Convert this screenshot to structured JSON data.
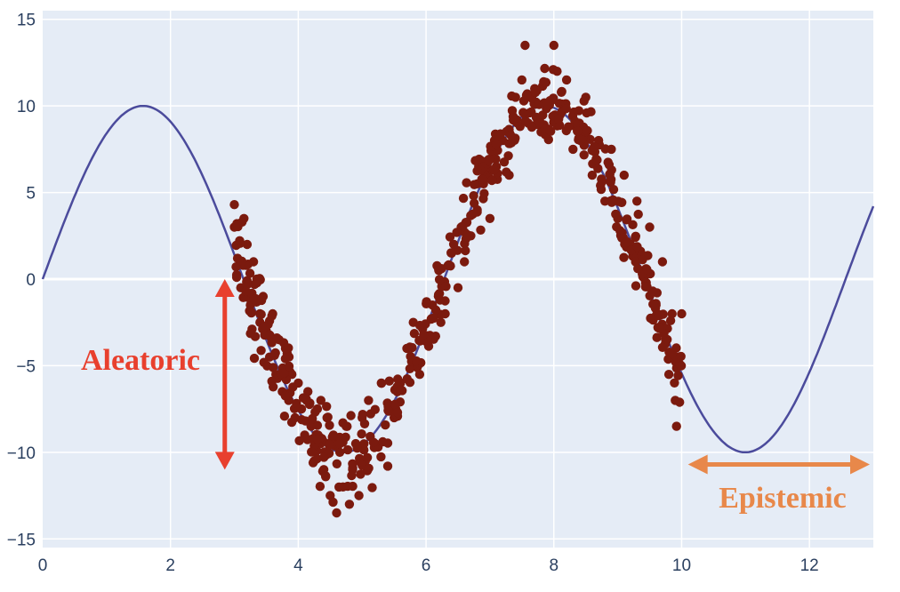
{
  "chart_data": {
    "type": "scatter",
    "title": "",
    "xlabel": "",
    "ylabel": "",
    "xlim": [
      0,
      13
    ],
    "ylim": [
      -15.5,
      15.5
    ],
    "x_ticks": [
      "0",
      "2",
      "4",
      "6",
      "8",
      "10",
      "12"
    ],
    "y_ticks": [
      "15",
      "10",
      "5",
      "0",
      "−5",
      "−10",
      "−15"
    ],
    "grid": true,
    "legend": "none",
    "colors": {
      "plot_background": "#e5ecf6",
      "grid": "#ffffff",
      "curve": "#4b4b9c",
      "points": "#7b1a0e",
      "aleatoric": "#e8402e",
      "epistemic": "#e8884a"
    },
    "series": [
      {
        "kind": "line",
        "function": "y = 10*sin(x)",
        "x_range": [
          0,
          13
        ],
        "samples": [
          [
            0,
            0
          ],
          [
            1.5708,
            10
          ],
          [
            3.1416,
            0
          ],
          [
            4.7124,
            -10
          ],
          [
            6.2832,
            0
          ],
          [
            7.854,
            10
          ],
          [
            9.4248,
            0
          ],
          [
            10.9956,
            -10
          ],
          [
            12.5664,
            0
          ],
          [
            13,
            4.2
          ]
        ]
      },
      {
        "kind": "scatter",
        "points": [
          [
            3.0,
            4.3
          ],
          [
            3.0,
            3.0
          ],
          [
            3.05,
            1.2
          ],
          [
            3.1,
            -0.5
          ],
          [
            3.15,
            3.5
          ],
          [
            3.2,
            2.0
          ],
          [
            3.25,
            -1.5
          ],
          [
            3.3,
            1.0
          ],
          [
            3.35,
            0.0
          ],
          [
            3.4,
            -2.5
          ],
          [
            3.45,
            -1.0
          ],
          [
            3.5,
            -3.0
          ],
          [
            3.55,
            -4.5
          ],
          [
            3.6,
            -2.0
          ],
          [
            3.65,
            -5.5
          ],
          [
            3.7,
            -3.5
          ],
          [
            3.75,
            -6.5
          ],
          [
            3.8,
            -4.0
          ],
          [
            3.85,
            -7.0
          ],
          [
            3.9,
            -5.5
          ],
          [
            3.95,
            -8.0
          ],
          [
            4.0,
            -6.0
          ],
          [
            4.05,
            -7.5
          ],
          [
            4.1,
            -9.0
          ],
          [
            4.15,
            -6.5
          ],
          [
            4.2,
            -8.5
          ],
          [
            4.25,
            -10.5
          ],
          [
            4.3,
            -7.5
          ],
          [
            4.35,
            -9.5
          ],
          [
            4.4,
            -11.0
          ],
          [
            4.45,
            -8.0
          ],
          [
            4.5,
            -12.5
          ],
          [
            4.55,
            -9.0
          ],
          [
            4.6,
            -13.5
          ],
          [
            4.65,
            -10.0
          ],
          [
            4.7,
            -12.0
          ],
          [
            4.75,
            -8.5
          ],
          [
            4.8,
            -13.0
          ],
          [
            4.85,
            -11.0
          ],
          [
            4.9,
            -9.5
          ],
          [
            4.95,
            -12.5
          ],
          [
            5.0,
            -8.0
          ],
          [
            5.05,
            -10.5
          ],
          [
            5.1,
            -7.0
          ],
          [
            5.2,
            -9.5
          ],
          [
            5.3,
            -6.0
          ],
          [
            5.4,
            -10.8
          ],
          [
            5.5,
            -8.0
          ],
          [
            5.6,
            -6.0
          ],
          [
            5.7,
            -4.0
          ],
          [
            5.8,
            -2.5
          ],
          [
            5.9,
            -5.5
          ],
          [
            6.0,
            -3.5
          ],
          [
            6.1,
            -1.5
          ],
          [
            6.2,
            0.5
          ],
          [
            6.3,
            -2.0
          ],
          [
            6.4,
            1.5
          ],
          [
            6.5,
            -0.5
          ],
          [
            6.55,
            3.0
          ],
          [
            6.6,
            1.0
          ],
          [
            6.7,
            2.5
          ],
          [
            6.8,
            4.0
          ],
          [
            6.9,
            5.5
          ],
          [
            7.0,
            3.5
          ],
          [
            7.1,
            6.5
          ],
          [
            7.2,
            8.0
          ],
          [
            7.3,
            6.0
          ],
          [
            7.4,
            10.5
          ],
          [
            7.5,
            11.5
          ],
          [
            7.55,
            13.5
          ],
          [
            7.6,
            9.0
          ],
          [
            7.7,
            11.0
          ],
          [
            7.8,
            8.5
          ],
          [
            7.9,
            10.0
          ],
          [
            8.0,
            13.5
          ],
          [
            8.05,
            12.0
          ],
          [
            8.1,
            9.5
          ],
          [
            8.2,
            11.5
          ],
          [
            8.3,
            7.5
          ],
          [
            8.4,
            9.0
          ],
          [
            8.5,
            10.5
          ],
          [
            8.6,
            6.0
          ],
          [
            8.7,
            8.0
          ],
          [
            8.8,
            4.5
          ],
          [
            8.9,
            7.5
          ],
          [
            9.0,
            3.5
          ],
          [
            9.1,
            6.0
          ],
          [
            9.2,
            2.0
          ],
          [
            9.3,
            4.5
          ],
          [
            9.4,
            0.5
          ],
          [
            9.5,
            3.0
          ],
          [
            9.6,
            -1.5
          ],
          [
            9.7,
            1.0
          ],
          [
            9.75,
            -3.5
          ],
          [
            9.8,
            -5.5
          ],
          [
            9.85,
            -2.0
          ],
          [
            9.9,
            -7.0
          ],
          [
            9.92,
            -8.5
          ],
          [
            9.95,
            -4.5
          ],
          [
            10.0,
            -2.0
          ]
        ],
        "n_points": 600
      }
    ],
    "annotations": [
      {
        "text": "Aleatoric",
        "arrow": "vertical",
        "x": 2.85,
        "y_from": 0.0,
        "y_to": -11.0
      },
      {
        "text": "Epistemic",
        "arrow": "horizontal",
        "y": -10.7,
        "x_from": 10.1,
        "x_to": 13.0
      }
    ]
  }
}
